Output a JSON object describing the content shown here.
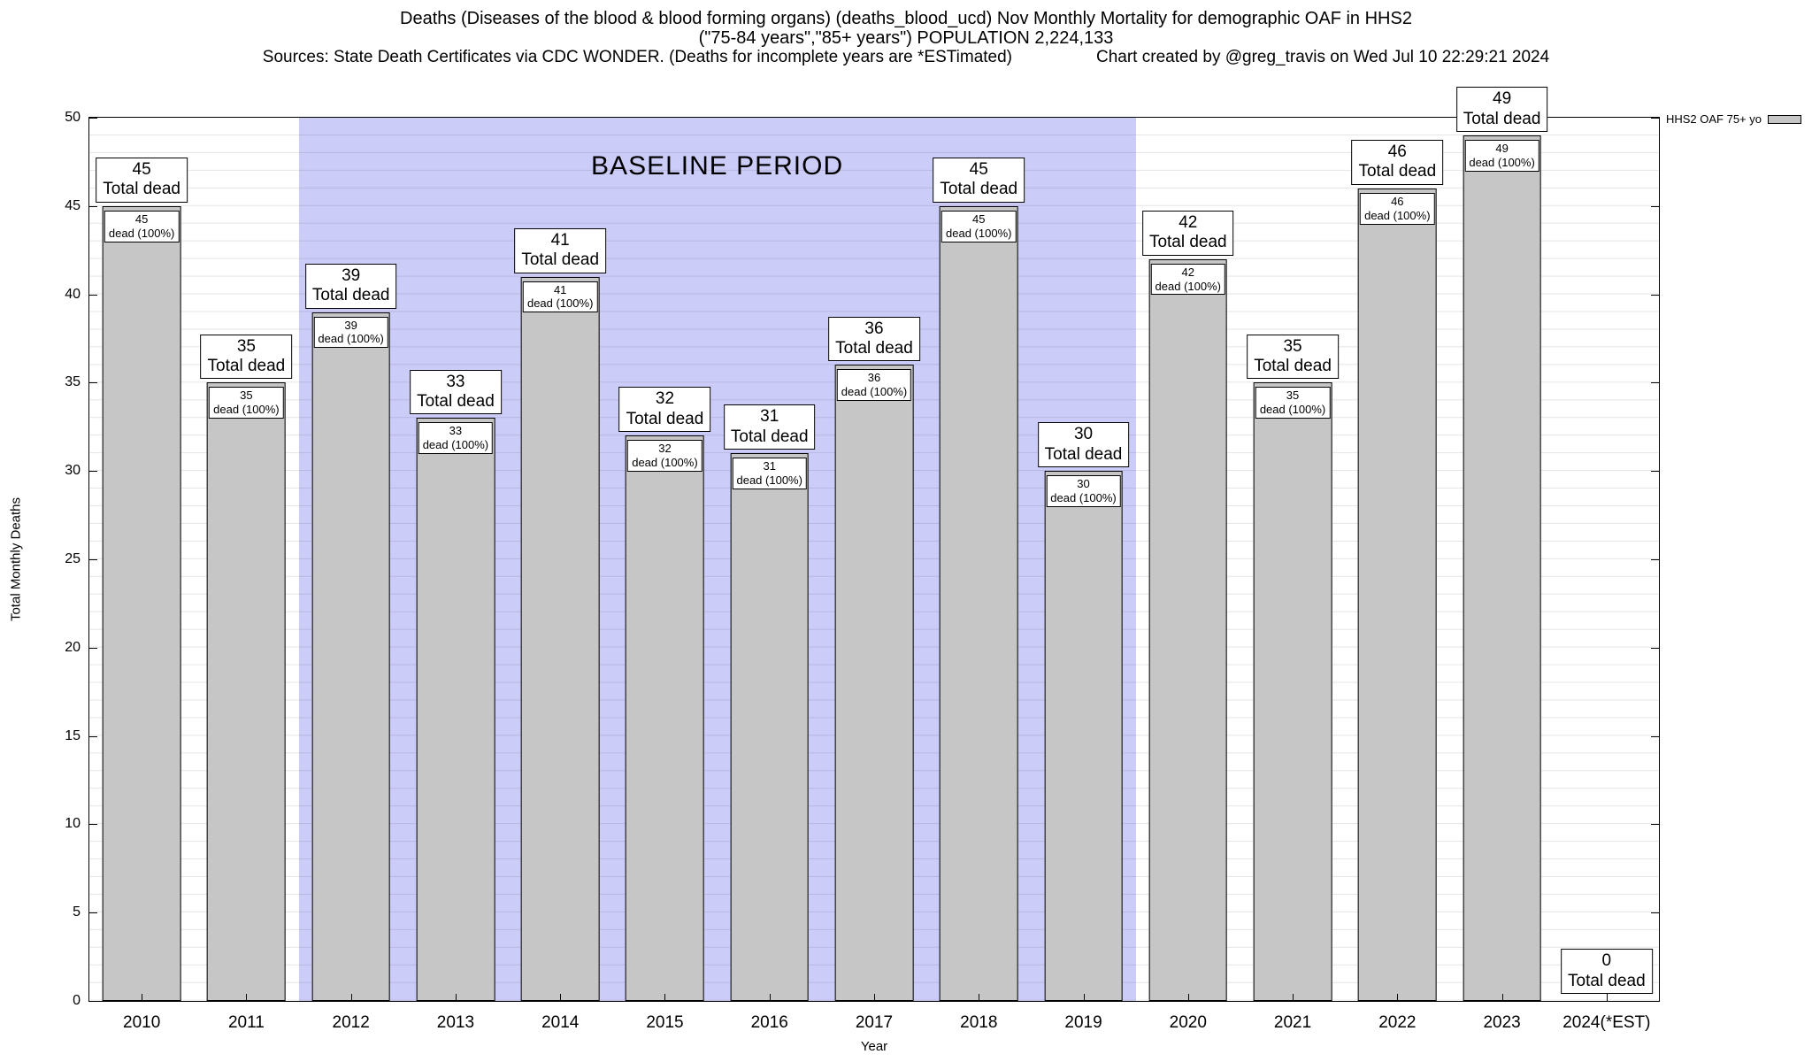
{
  "header": {
    "title_line1": "Deaths (Diseases of the blood & blood forming organs) (deaths_blood_ucd) Nov Monthly Mortality for demographic OAF in HHS2",
    "title_line2": "(\"75-84 years\",\"85+ years\") POPULATION 2,224,133",
    "sources": "Sources: State Death Certificates via CDC WONDER. (Deaths for incomplete years are *ESTimated)",
    "credit": "Chart created by @greg_travis on Wed Jul 10 22:29:21 2024"
  },
  "legend": {
    "label": "HHS2 OAF 75+ yo"
  },
  "chart_data": {
    "type": "bar",
    "title": "Deaths (Diseases of the blood & blood forming organs) (deaths_blood_ucd) Nov Monthly Mortality for demographic OAF in HHS2",
    "xlabel": "Year",
    "ylabel": "Total Monthly Deaths",
    "ylim": [
      0,
      50
    ],
    "ytick_step": 5,
    "minor_grid_step": 1,
    "grid": true,
    "legend_position": "top-right-outside",
    "bar_color": "#c6c6c6",
    "categories": [
      "2010",
      "2011",
      "2012",
      "2013",
      "2014",
      "2015",
      "2016",
      "2017",
      "2018",
      "2019",
      "2020",
      "2021",
      "2022",
      "2023",
      "2024(*EST)"
    ],
    "values": [
      45,
      35,
      39,
      33,
      41,
      32,
      31,
      36,
      45,
      30,
      42,
      35,
      46,
      49,
      0
    ],
    "bar_label_suffix": "Total dead",
    "bar_inner_suffix": "dead (100%)",
    "baseline_band": {
      "label": "BASELINE PERIOD",
      "start": "2012",
      "end": "2019",
      "color": "#ccccf8"
    }
  }
}
